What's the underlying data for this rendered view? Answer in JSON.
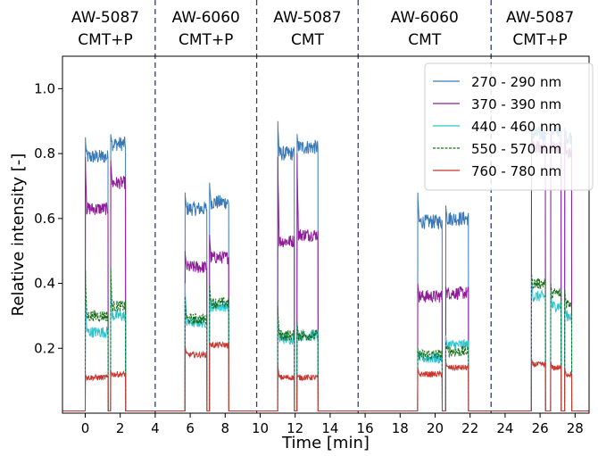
{
  "chart_data": {
    "type": "line",
    "xlabel": "Time [min]",
    "ylabel": "Relative intensity [-]",
    "xlim": [
      -1.3,
      28.8
    ],
    "ylim": [
      0,
      1.1
    ],
    "xticks": [
      0,
      2,
      4,
      6,
      8,
      10,
      12,
      14,
      16,
      18,
      20,
      22,
      24,
      26,
      28
    ],
    "yticks": [
      0.2,
      0.4,
      0.6,
      0.8,
      1.0
    ],
    "ytick_labels": [
      "0.2",
      "0.4",
      "0.6",
      "0.8",
      "1.0"
    ],
    "grid": false,
    "legend_position": "top-right",
    "section_dividers": [
      4.0,
      9.8,
      15.6,
      23.2
    ],
    "sections": [
      {
        "line1": "AW-5087",
        "line2": "CMT+P",
        "center": 1.15
      },
      {
        "line1": "AW-6060",
        "line2": "CMT+P",
        "center": 6.9
      },
      {
        "line1": "AW-5087",
        "line2": "CMT",
        "center": 12.7
      },
      {
        "line1": "AW-6060",
        "line2": "CMT",
        "center": 19.4
      },
      {
        "line1": "AW-5087",
        "line2": "CMT+P",
        "center": 26.0
      }
    ],
    "pulses": [
      {
        "start": 0.0,
        "end": 1.3,
        "levels": [
          0.79,
          0.63,
          0.25,
          0.3,
          0.11
        ],
        "spike": [
          0.85,
          0.79,
          0.38,
          0.44,
          0.12
        ]
      },
      {
        "start": 1.45,
        "end": 2.3,
        "levels": [
          0.83,
          0.71,
          0.3,
          0.33,
          0.12
        ],
        "spike": [
          0.86,
          0.78,
          0.4,
          0.45,
          0.13
        ]
      },
      {
        "start": 5.7,
        "end": 6.95,
        "levels": [
          0.63,
          0.45,
          0.28,
          0.29,
          0.18
        ],
        "spike": [
          0.68,
          0.5,
          0.4,
          0.36,
          0.21
        ]
      },
      {
        "start": 7.1,
        "end": 8.2,
        "levels": [
          0.65,
          0.48,
          0.33,
          0.34,
          0.21
        ],
        "spike": [
          0.71,
          0.55,
          0.38,
          0.4,
          0.22
        ]
      },
      {
        "start": 11.0,
        "end": 11.95,
        "levels": [
          0.8,
          0.53,
          0.23,
          0.24,
          0.11
        ],
        "spike": [
          0.9,
          0.79,
          0.3,
          0.33,
          0.15
        ]
      },
      {
        "start": 12.1,
        "end": 13.3,
        "levels": [
          0.82,
          0.55,
          0.24,
          0.24,
          0.11
        ],
        "spike": [
          0.86,
          0.8,
          0.27,
          0.28,
          0.12
        ]
      },
      {
        "start": 19.0,
        "end": 20.4,
        "levels": [
          0.59,
          0.36,
          0.17,
          0.18,
          0.12
        ],
        "spike": [
          0.68,
          0.4,
          0.2,
          0.2,
          0.14
        ]
      },
      {
        "start": 20.6,
        "end": 21.9,
        "levels": [
          0.6,
          0.37,
          0.21,
          0.19,
          0.14
        ],
        "spike": [
          0.64,
          0.39,
          0.24,
          0.22,
          0.16
        ]
      },
      {
        "start": 25.5,
        "end": 26.3,
        "levels": [
          0.86,
          0.82,
          0.36,
          0.4,
          0.15
        ],
        "spike": [
          0.88,
          0.87,
          0.42,
          0.43,
          0.17
        ]
      },
      {
        "start": 26.6,
        "end": 27.2,
        "levels": [
          0.87,
          0.82,
          0.33,
          0.37,
          0.14
        ],
        "spike": [
          0.88,
          0.87,
          0.38,
          0.4,
          0.16
        ]
      },
      {
        "start": 27.4,
        "end": 27.8,
        "levels": [
          0.85,
          0.8,
          0.3,
          0.34,
          0.12
        ],
        "spike": [
          0.88,
          0.86,
          0.34,
          0.38,
          0.14
        ]
      }
    ],
    "series": [
      {
        "name": "270 - 290 nm",
        "color": "#3b79b6",
        "dash": "solid"
      },
      {
        "name": "370 - 390 nm",
        "color": "#8e1e97",
        "dash": "solid"
      },
      {
        "name": "440 - 460 nm",
        "color": "#2ec4cf",
        "dash": "solid"
      },
      {
        "name": "550 - 570 nm",
        "color": "#1a6f1a",
        "dash": "dashed"
      },
      {
        "name": "760 - 780 nm",
        "color": "#c8372f",
        "dash": "solid"
      }
    ]
  }
}
